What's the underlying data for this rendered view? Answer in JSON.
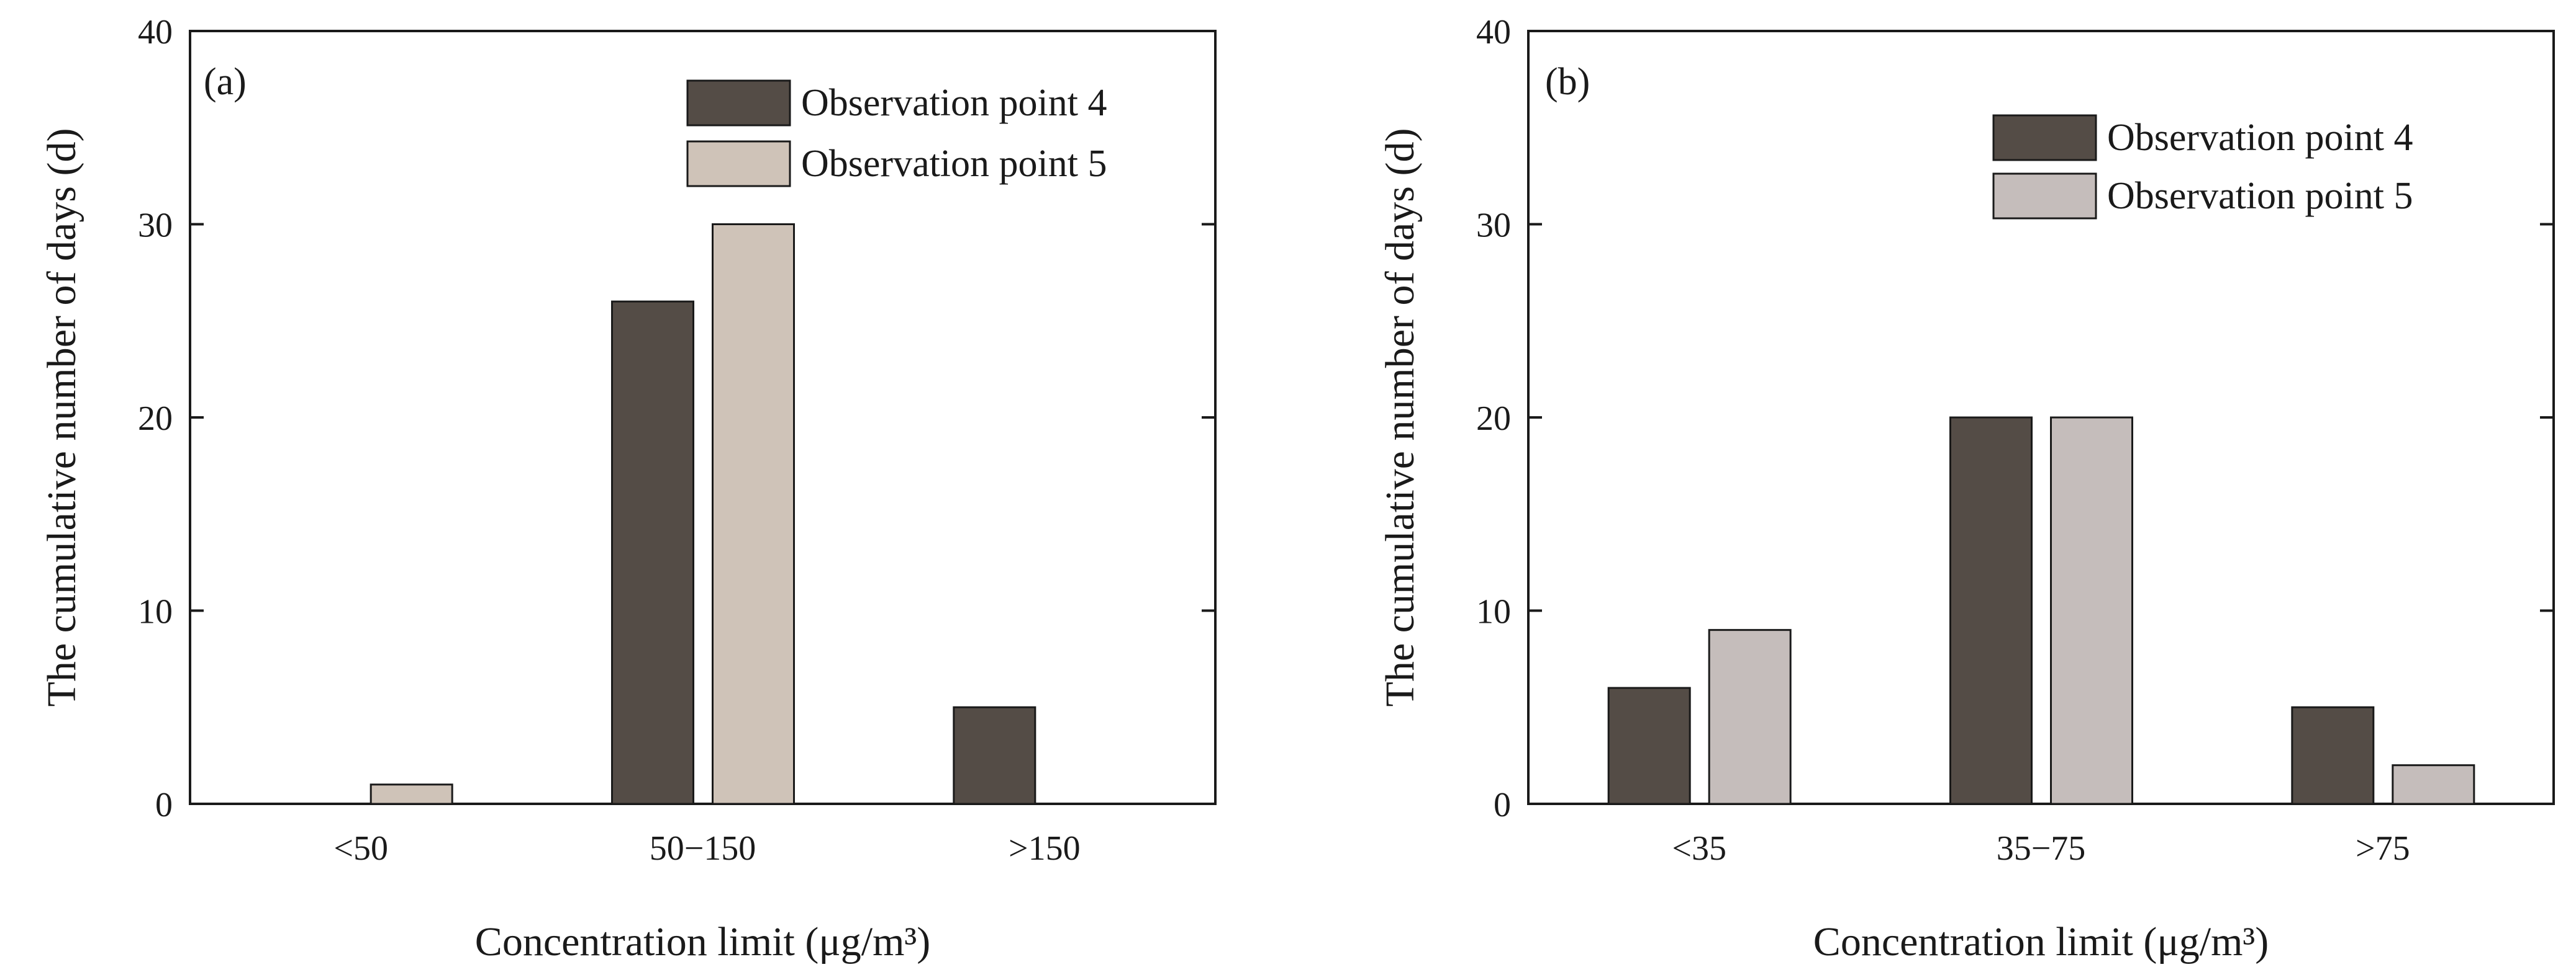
{
  "chart_data": [
    {
      "type": "bar",
      "panel_label": "(a)",
      "categories": [
        "<50",
        "50−150",
        ">150"
      ],
      "series": [
        {
          "name": "Observation point 4",
          "values": [
            0,
            26,
            5
          ],
          "color": "#544c46"
        },
        {
          "name": "Observation point 5",
          "values": [
            1,
            30,
            0
          ],
          "color": "#cfc3b8"
        }
      ],
      "xlabel": "Concentration limit (μg/m³)",
      "ylabel": "The cumulative number of days (d)",
      "ylim": [
        0,
        40
      ],
      "yticks": [
        "0",
        "10",
        "20",
        "30",
        "40"
      ],
      "grid": false,
      "legend_position": "top-right"
    },
    {
      "type": "bar",
      "panel_label": "(b)",
      "categories": [
        "<35",
        "35−75",
        ">75"
      ],
      "series": [
        {
          "name": "Observation point 4",
          "values": [
            6,
            20,
            5
          ],
          "color": "#544c46"
        },
        {
          "name": "Observation point 5",
          "values": [
            9,
            20,
            2
          ],
          "color": "#c5bdbb"
        }
      ],
      "xlabel": "Concentration limit (μg/m³)",
      "ylabel": "The cumulative number of days (d)",
      "ylim": [
        0,
        40
      ],
      "yticks": [
        "0",
        "10",
        "20",
        "30",
        "40"
      ],
      "grid": false,
      "legend_position": "top-right"
    }
  ]
}
